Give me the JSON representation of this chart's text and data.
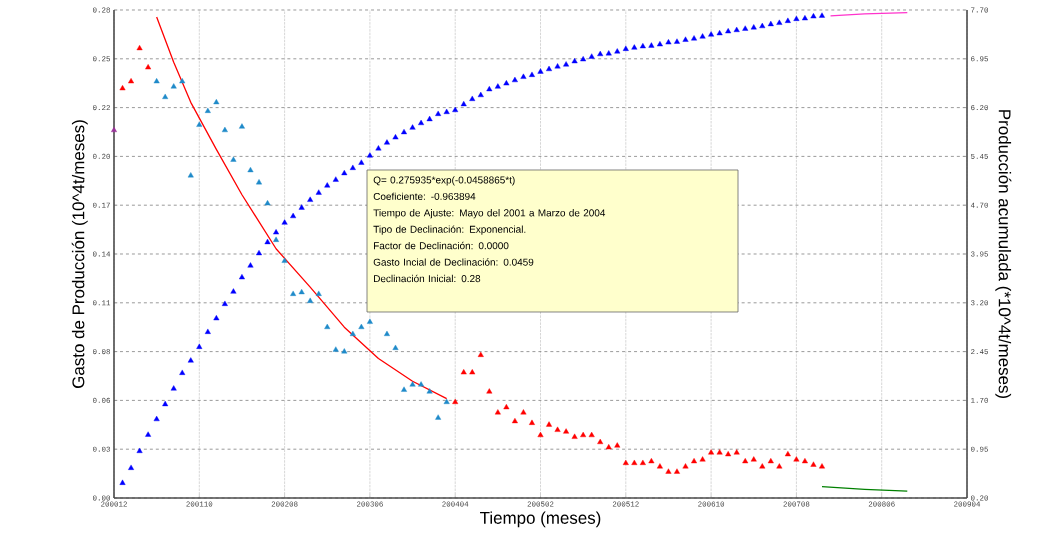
{
  "chart_data": {
    "type": "scatter",
    "xlabel": "Tiempo (meses)",
    "ylabel": "Gasto de Producción (10^4t/meses)",
    "y2label": "Producción acumulada (*10^4t/meses)",
    "xlim": [
      "2000-12",
      "2009-04"
    ],
    "xticks": [
      {
        "value": "2000-12",
        "label": "200012"
      },
      {
        "value": "2001-10",
        "label": "200110"
      },
      {
        "value": "2002-08",
        "label": "200208"
      },
      {
        "value": "2003-06",
        "label": "200306"
      },
      {
        "value": "2004-04",
        "label": "200404"
      },
      {
        "value": "2005-02",
        "label": "200502"
      },
      {
        "value": "2005-12",
        "label": "200512"
      },
      {
        "value": "2006-10",
        "label": "200610"
      },
      {
        "value": "2007-08",
        "label": "200708"
      },
      {
        "value": "2008-06",
        "label": "200806"
      },
      {
        "value": "2009-04",
        "label": "200904"
      }
    ],
    "ylim": [
      0,
      0.28
    ],
    "yticks": [
      {
        "value": 0,
        "label": "0.00"
      },
      {
        "value": 0.028,
        "label": "0.03"
      },
      {
        "value": 0.056,
        "label": "0.06"
      },
      {
        "value": 0.084,
        "label": "0.08"
      },
      {
        "value": 0.112,
        "label": "0.11"
      },
      {
        "value": 0.14,
        "label": "0.14"
      },
      {
        "value": 0.168,
        "label": "0.17"
      },
      {
        "value": 0.196,
        "label": "0.20"
      },
      {
        "value": 0.224,
        "label": "0.22"
      },
      {
        "value": 0.252,
        "label": "0.25"
      },
      {
        "value": 0.28,
        "label": "0.28"
      }
    ],
    "y2lim": [
      0.2,
      7.7
    ],
    "y2ticks": [
      {
        "value": 0.2,
        "label": "0.20"
      },
      {
        "value": 0.95,
        "label": "0.95"
      },
      {
        "value": 1.7,
        "label": "1.70"
      },
      {
        "value": 2.45,
        "label": "2.45"
      },
      {
        "value": 3.2,
        "label": "3.20"
      },
      {
        "value": 3.95,
        "label": "3.95"
      },
      {
        "value": 4.7,
        "label": "4.70"
      },
      {
        "value": 5.45,
        "label": "5.45"
      },
      {
        "value": 6.2,
        "label": "6.20"
      },
      {
        "value": 6.95,
        "label": "6.95"
      },
      {
        "value": 7.7,
        "label": "7.70"
      }
    ],
    "grid": true,
    "annotations": [
      "Q= 0.275935*exp(-0.0458865*t)",
      "Coeficiente: -0.963894",
      "Tiempo de Ajuste: Mayo del 2001 a Marzo de 2004",
      "Tipo de Declinación: Exponencial.",
      "Factor de Declinación: 0.0000",
      "Gasto Incial de Declinación: 0.0459",
      "Declinación Inicial: 0.28"
    ],
    "series": [
      {
        "marker": "triangle",
        "color": "#ff0000",
        "x": [
          "2001-01",
          "2001-02",
          "2001-03",
          "2001-04",
          "2004-04",
          "2004-05",
          "2004-06",
          "2004-07",
          "2004-08",
          "2004-09",
          "2004-10",
          "2004-11",
          "2004-12",
          "2005-01",
          "2005-02",
          "2005-03",
          "2005-04",
          "2005-05",
          "2005-06",
          "2005-07",
          "2005-08",
          "2005-09",
          "2005-10",
          "2005-11",
          "2005-12",
          "2006-01",
          "2006-02",
          "2006-03",
          "2006-04",
          "2006-05",
          "2006-06",
          "2006-07",
          "2006-08",
          "2006-09",
          "2006-10",
          "2006-11",
          "2006-12",
          "2007-01",
          "2007-02",
          "2007-03",
          "2007-04",
          "2007-05",
          "2007-06",
          "2007-07",
          "2007-08",
          "2007-09",
          "2007-10",
          "2007-11"
        ],
        "values": [
          0.235,
          0.239,
          0.258,
          0.247,
          0.055,
          0.072,
          0.072,
          0.082,
          0.061,
          0.049,
          0.052,
          0.044,
          0.049,
          0.043,
          0.036,
          0.042,
          0.039,
          0.038,
          0.035,
          0.036,
          0.036,
          0.032,
          0.029,
          0.03,
          0.02,
          0.02,
          0.02,
          0.021,
          0.018,
          0.015,
          0.015,
          0.018,
          0.021,
          0.022,
          0.026,
          0.026,
          0.025,
          0.026,
          0.021,
          0.022,
          0.018,
          0.021,
          0.018,
          0.025,
          0.022,
          0.021,
          0.019,
          0.018
        ]
      },
      {
        "marker": "triangle",
        "color": "#1f8ac9",
        "x": [
          "2001-05",
          "2001-06",
          "2001-07",
          "2001-08",
          "2001-09",
          "2001-10",
          "2001-11",
          "2001-12",
          "2002-01",
          "2002-02",
          "2002-03",
          "2002-04",
          "2002-05",
          "2002-06",
          "2002-07",
          "2002-08",
          "2002-09",
          "2002-10",
          "2002-11",
          "2002-12",
          "2003-01",
          "2003-02",
          "2003-03",
          "2003-04",
          "2003-05",
          "2003-06",
          "2003-08",
          "2003-09",
          "2003-10",
          "2003-11",
          "2003-12",
          "2004-01",
          "2004-02",
          "2004-03"
        ],
        "values": [
          0.239,
          0.23,
          0.236,
          0.239,
          0.185,
          0.214,
          0.222,
          0.227,
          0.211,
          0.194,
          0.213,
          0.188,
          0.181,
          0.169,
          0.148,
          0.136,
          0.117,
          0.118,
          0.113,
          0.117,
          0.098,
          0.085,
          0.084,
          0.094,
          0.098,
          0.101,
          0.094,
          0.086,
          0.062,
          0.065,
          0.065,
          0.061,
          0.046,
          0.055
        ]
      },
      {
        "marker": "triangle",
        "color": "#0000ff",
        "axis": "y2",
        "x": [
          "2001-01",
          "2001-02",
          "2001-03",
          "2001-04",
          "2001-05",
          "2001-06",
          "2001-07",
          "2001-08",
          "2001-09",
          "2001-10",
          "2001-11",
          "2001-12",
          "2002-01",
          "2002-02",
          "2002-03",
          "2002-04",
          "2002-05",
          "2002-06",
          "2002-07",
          "2002-08",
          "2002-09",
          "2002-10",
          "2002-11",
          "2002-12",
          "2003-01",
          "2003-02",
          "2003-03",
          "2003-04",
          "2003-05",
          "2003-06",
          "2003-07",
          "2003-08",
          "2003-09",
          "2003-10",
          "2003-11",
          "2003-12",
          "2004-01",
          "2004-02",
          "2004-03",
          "2004-04",
          "2004-05",
          "2004-06",
          "2004-07",
          "2004-08",
          "2004-09",
          "2004-10",
          "2004-11",
          "2004-12",
          "2005-01",
          "2005-02",
          "2005-03",
          "2005-04",
          "2005-05",
          "2005-06",
          "2005-07",
          "2005-08",
          "2005-09",
          "2005-10",
          "2005-11",
          "2005-12",
          "2006-01",
          "2006-02",
          "2006-03",
          "2006-04",
          "2006-05",
          "2006-06",
          "2006-07",
          "2006-08",
          "2006-09",
          "2006-10",
          "2006-11",
          "2006-12",
          "2007-01",
          "2007-02",
          "2007-03",
          "2007-04",
          "2007-05",
          "2007-06",
          "2007-07",
          "2007-08",
          "2007-09",
          "2007-10",
          "2007-11"
        ],
        "values": [
          0.43,
          0.66,
          0.92,
          1.17,
          1.41,
          1.64,
          1.88,
          2.12,
          2.31,
          2.52,
          2.75,
          2.96,
          3.18,
          3.37,
          3.59,
          3.77,
          3.96,
          4.13,
          4.28,
          4.43,
          4.53,
          4.66,
          4.78,
          4.89,
          5.0,
          5.09,
          5.19,
          5.27,
          5.35,
          5.46,
          5.57,
          5.66,
          5.74,
          5.82,
          5.89,
          5.96,
          6.02,
          6.1,
          6.13,
          6.16,
          6.25,
          6.33,
          6.39,
          6.48,
          6.52,
          6.57,
          6.62,
          6.67,
          6.7,
          6.75,
          6.79,
          6.83,
          6.86,
          6.91,
          6.94,
          6.98,
          7.02,
          7.03,
          7.06,
          7.1,
          7.12,
          7.14,
          7.15,
          7.17,
          7.2,
          7.21,
          7.24,
          7.26,
          7.29,
          7.32,
          7.34,
          7.37,
          7.39,
          7.41,
          7.43,
          7.45,
          7.48,
          7.5,
          7.53,
          7.56,
          7.57,
          7.6,
          7.61
        ]
      },
      {
        "type": "line",
        "marker": "none",
        "color": "#ff0000",
        "x": [
          "2001-05",
          "2001-07",
          "2001-09",
          "2001-12",
          "2002-03",
          "2002-07",
          "2002-11",
          "2003-03",
          "2003-07",
          "2003-11",
          "2004-03"
        ],
        "values": [
          0.276,
          0.25,
          0.227,
          0.2,
          0.174,
          0.143,
          0.121,
          0.098,
          0.08,
          0.067,
          0.057
        ]
      },
      {
        "type": "line",
        "marker": "none",
        "color": "#ff33cc",
        "axis": "y2",
        "x": [
          "2007-12",
          "2008-04",
          "2008-09"
        ],
        "values": [
          7.61,
          7.64,
          7.66
        ]
      },
      {
        "type": "line",
        "marker": "none",
        "color": "#008000",
        "x": [
          "2007-11",
          "2008-04",
          "2008-09"
        ],
        "values": [
          0.0065,
          0.005,
          0.004
        ]
      },
      {
        "marker": "triangle",
        "color": "#993399",
        "x": [
          "2000-12"
        ],
        "values": [
          0.211
        ]
      }
    ]
  }
}
